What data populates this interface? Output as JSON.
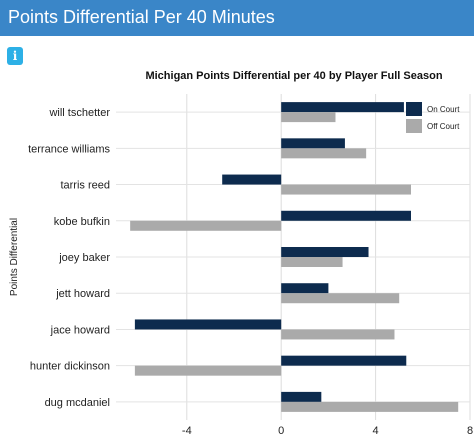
{
  "header": {
    "title": "Points Differential Per 40 Minutes"
  },
  "info_button": {
    "glyph": "i",
    "icon": "info-icon"
  },
  "chart_data": {
    "type": "bar",
    "orientation": "horizontal",
    "title": "Michigan Points Differential per 40 by Player Full Season",
    "xlabel": "",
    "ylabel": "Points Differential",
    "categories": [
      "will tschetter",
      "terrance williams",
      "tarris reed",
      "kobe bufkin",
      "joey baker",
      "jett howard",
      "jace howard",
      "hunter dickinson",
      "dug mcdaniel"
    ],
    "series": [
      {
        "name": "On Court",
        "color": "#0d2b4e",
        "values": [
          5.2,
          2.7,
          -2.5,
          5.5,
          3.7,
          2.0,
          -6.2,
          5.3,
          1.7
        ]
      },
      {
        "name": "Off Court",
        "color": "#aaaaaa",
        "values": [
          2.3,
          3.6,
          5.5,
          -6.4,
          2.6,
          5.0,
          4.8,
          -6.2,
          7.5
        ]
      }
    ],
    "xlim": [
      -7,
      8
    ],
    "xticks": [
      -4,
      0,
      4,
      8
    ],
    "grid": true,
    "legend_position": "top-right"
  }
}
